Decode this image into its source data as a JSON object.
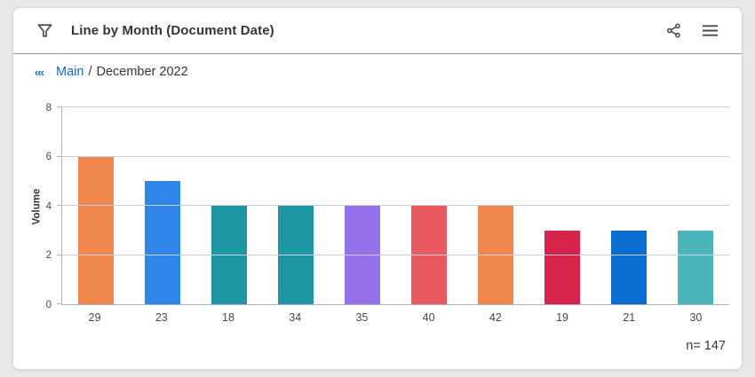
{
  "panel": {
    "title": "Line by Month (Document Date)"
  },
  "breadcrumb": {
    "collapse_glyph": "‹‹‹",
    "link": "Main",
    "separator": "/",
    "current": "December 2022"
  },
  "footer": {
    "count_label": "n= 147"
  },
  "colors": {
    "link_blue": "#0a6ed1",
    "grid": "#ccccdf",
    "axis": "#b1b1c5"
  },
  "chart_data": {
    "type": "bar",
    "title": "Line by Month (Document Date)",
    "categories": [
      "29",
      "23",
      "18",
      "34",
      "35",
      "40",
      "42",
      "19",
      "21",
      "30"
    ],
    "values": [
      6,
      5,
      4,
      4,
      4,
      4,
      4,
      3,
      3,
      3
    ],
    "bar_colors": [
      "#f0884d",
      "#2f86e8",
      "#1e96a4",
      "#1e96a4",
      "#9470ea",
      "#e85a60",
      "#f0884d",
      "#d62349",
      "#0a6ed1",
      "#4cb5bc"
    ],
    "xlabel": "",
    "ylabel": "Volume",
    "ylim": [
      0,
      8
    ],
    "yticks": [
      0,
      2,
      4,
      6,
      8
    ],
    "grid": true,
    "legend": false,
    "n_total": 147
  }
}
